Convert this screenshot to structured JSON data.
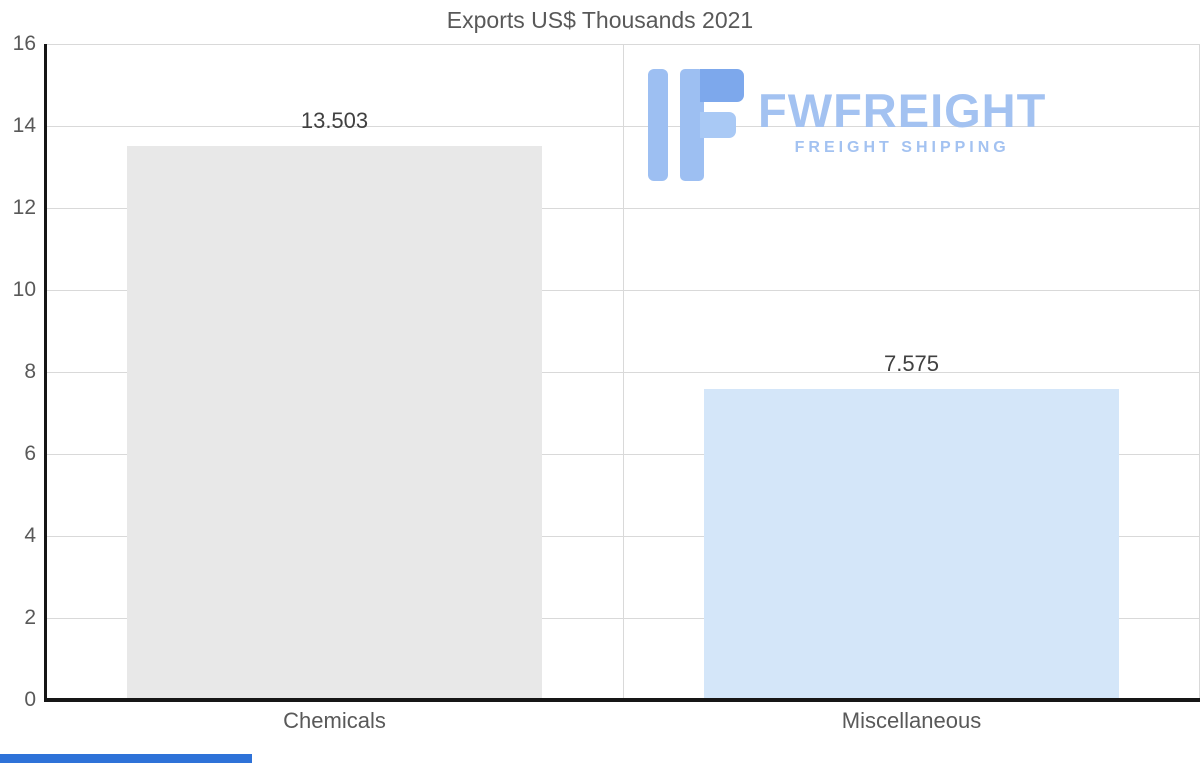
{
  "chart_data": {
    "type": "bar",
    "title": "Exports US$ Thousands 2021",
    "categories": [
      "Chemicals",
      "Miscellaneous"
    ],
    "values": [
      13.503,
      7.575
    ],
    "value_labels": [
      "13.503",
      "7.575"
    ],
    "xlabel": "",
    "ylabel": "",
    "ylim": [
      0,
      16
    ],
    "yticks": [
      0,
      2,
      4,
      6,
      8,
      10,
      12,
      14,
      16
    ],
    "bar_colors": [
      "#e8e8e8",
      "#d4e6f9"
    ],
    "grid": true,
    "legend": false
  },
  "logo": {
    "name": "FWFREIGHT",
    "tagline": "FREIGHT SHIPPING"
  },
  "colors": {
    "accent_blue": "#a3c2f1",
    "logo_icon_light": "#9dbff2",
    "logo_icon_dark": "#7da8ec",
    "axis": "#161616",
    "gridline": "#d9d9d9",
    "text": "#595959",
    "bottom_bar": "#2e72d8"
  }
}
